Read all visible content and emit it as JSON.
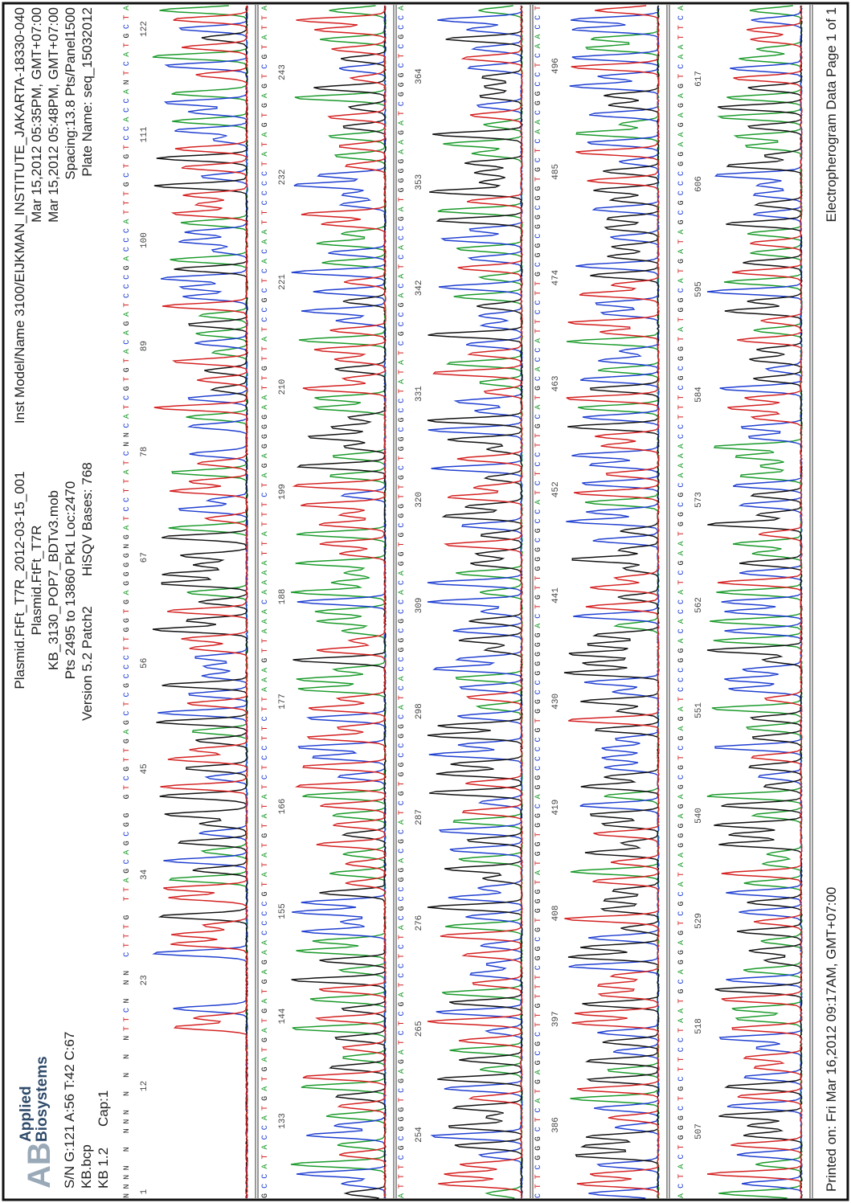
{
  "header": {
    "logo": [
      "Applied",
      "Biosystems"
    ],
    "left": [
      "S/N G:121 A:56 T:42 C:67",
      "KB.bcp",
      "KB 1.2",
      "Cap:1"
    ],
    "center": [
      "Plasmid.FtFt_T7R_2012-03-15_001",
      "Plasmid.FtFt_T7R",
      "KB_3130_POP7_BDTv3.mob",
      "Pts 2495 to 13860 Pk1 Loc:2470",
      "Version 5.2 Patch2",
      "HiSQV Bases: 768"
    ],
    "right": [
      "Inst Model/Name 3100/EIJKMAN_INSTITUTE_JAKARTA-18330-040",
      "Mar 15,2012 05:35PM, GMT+07:00",
      "Mar 15,2012 05:48PM, GMT+07:00",
      "Spacing:13.8 Pts/Panel1500",
      "Plate Name: seq_15032012"
    ]
  },
  "rows": [
    {
      "sequence": "NNNN N NNN N N N NTTCN NN CTTTG TTAGCAGCGG GTCGTTGAGCTCGCCCTTGGTGAGGGGNGATCCTTATCNNCATCGTGTACAGATCCCGACCCATTTGCTGTCCACCANTCATGCTA",
      "numbers": [
        1,
        12,
        23,
        34,
        45,
        56,
        67,
        78,
        89,
        100,
        111,
        122
      ]
    },
    {
      "sequence": "GCCATACCATGATGATGATGATGAGAACCCCGTATATGTATATCTCCTTCTTAAAGTTAAACAAAATTATTTCTAGAGGGGAATTGTTATCCGCTCACAATTCCCCTATAGTGAGTCGTATTA",
      "numbers": [
        133,
        144,
        155,
        166,
        177,
        188,
        199,
        210,
        221,
        232,
        243
      ]
    },
    {
      "sequence": "ATTTCGCGGGTCGAGATCTCGATCCTCTACGCCGGACGCATCGTGGCCGGCATCACCGGCGCCACAGGTGCGGTTGCTGGCGCCTATATCGCCGACATCACCGATGGGGAAGATCGGGCTCGCCA",
      "numbers": [
        254,
        265,
        276,
        287,
        298,
        309,
        320,
        331,
        342,
        353,
        364
      ]
    },
    {
      "sequence": "CTTCGGGCTCATGAGCGCTTGTTTCGGCGTGGGTATGGTGGCAGGCCCCGTGGCCGGGGGACTGTTGGGCGCCATCTCCTTGCATGCACCATTCCTTGCGGCGGCGGTGCTCAACGGCCTCAACCT",
      "numbers": [
        386,
        397,
        408,
        419,
        430,
        441,
        452,
        463,
        474,
        485,
        496
      ]
    },
    {
      "sequence": "ACTACTGGGCTGCTTCCTAATGCAGGAGTCGCATAAGGGAGAGCGTCGAGATCCCGGACACCATCGAATGGCGCAAAACCTTTCGCGGTATGGCATGATAGCGCCCGGAAGAGAGTCAATTCA",
      "numbers": [
        507,
        518,
        529,
        540,
        551,
        562,
        573,
        584,
        595,
        606,
        617
      ]
    }
  ],
  "footer": {
    "left": "Printed on: Fri Mar 16,2012 09:17AM, GMT+07:00",
    "right": "Electropherogram Data  Page 1 of 1"
  }
}
